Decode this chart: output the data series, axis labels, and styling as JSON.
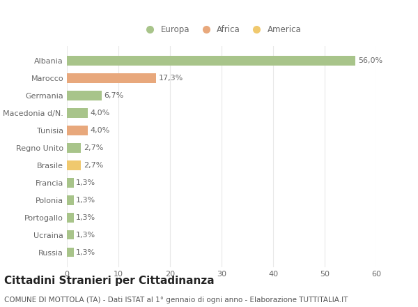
{
  "categories": [
    "Albania",
    "Marocco",
    "Germania",
    "Macedonia d/N.",
    "Tunisia",
    "Regno Unito",
    "Brasile",
    "Francia",
    "Polonia",
    "Portogallo",
    "Ucraina",
    "Russia"
  ],
  "values": [
    56.0,
    17.3,
    6.7,
    4.0,
    4.0,
    2.7,
    2.7,
    1.3,
    1.3,
    1.3,
    1.3,
    1.3
  ],
  "labels": [
    "56,0%",
    "17,3%",
    "6,7%",
    "4,0%",
    "4,0%",
    "2,7%",
    "2,7%",
    "1,3%",
    "1,3%",
    "1,3%",
    "1,3%",
    "1,3%"
  ],
  "colors": [
    "#a8c48a",
    "#e8a87c",
    "#a8c48a",
    "#a8c48a",
    "#e8a87c",
    "#a8c48a",
    "#f0c96e",
    "#a8c48a",
    "#a8c48a",
    "#a8c48a",
    "#a8c48a",
    "#a8c48a"
  ],
  "legend_labels": [
    "Europa",
    "Africa",
    "America"
  ],
  "legend_colors": [
    "#a8c48a",
    "#e8a87c",
    "#f0c96e"
  ],
  "title": "Cittadini Stranieri per Cittadinanza",
  "subtitle": "COMUNE DI MOTTOLA (TA) - Dati ISTAT al 1° gennaio di ogni anno - Elaborazione TUTTITALIA.IT",
  "xlim": [
    0,
    60
  ],
  "xticks": [
    0,
    10,
    20,
    30,
    40,
    50,
    60
  ],
  "background_color": "#ffffff",
  "grid_color": "#e8e8e8",
  "bar_height": 0.55,
  "title_fontsize": 11,
  "subtitle_fontsize": 7.5,
  "tick_fontsize": 8,
  "label_fontsize": 8
}
